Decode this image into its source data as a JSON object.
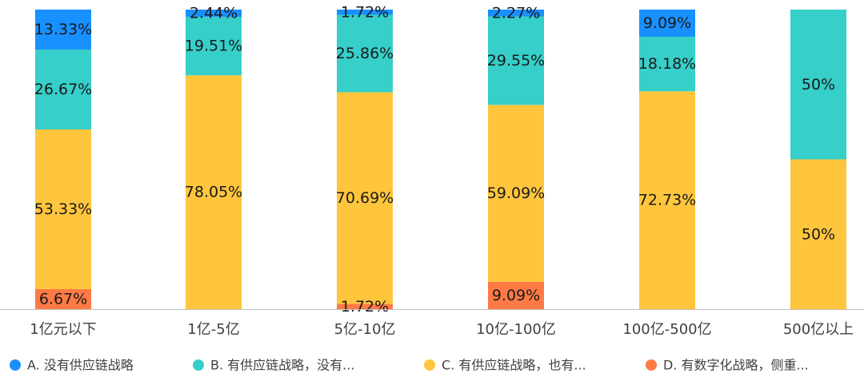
{
  "chart_data": {
    "type": "bar",
    "stacked": true,
    "percent": true,
    "categories": [
      "1亿元以下",
      "1亿-5亿",
      "5亿-10亿",
      "10亿-100亿",
      "100亿-500亿",
      "500亿以上"
    ],
    "series": [
      {
        "name": "A. 没有供应链战略",
        "color": "#1890ff",
        "values": [
          13.33,
          2.44,
          1.72,
          2.27,
          9.09,
          0
        ],
        "labels": [
          "13.33%",
          "2.44%",
          "1.72%",
          "2.27%",
          "9.09%",
          ""
        ]
      },
      {
        "name": "B. 有供应链战略，没有...",
        "color": "#36cfc9",
        "values": [
          26.67,
          19.51,
          25.86,
          29.55,
          18.18,
          50
        ],
        "labels": [
          "26.67%",
          "19.51%",
          "25.86%",
          "29.55%",
          "18.18%",
          "50%"
        ]
      },
      {
        "name": "C. 有供应链战略，也有...",
        "color": "#ffc53d",
        "values": [
          53.33,
          78.05,
          70.69,
          59.09,
          72.73,
          50
        ],
        "labels": [
          "53.33%",
          "78.05%",
          "70.69%",
          "59.09%",
          "72.73%",
          "50%"
        ]
      },
      {
        "name": "D. 有数字化战略，侧重...",
        "color": "#ff7a45",
        "values": [
          6.67,
          0,
          1.72,
          9.09,
          0,
          0
        ],
        "labels": [
          "6.67%",
          "",
          "1.72%",
          "9.09%",
          "",
          ""
        ]
      }
    ],
    "ylim": [
      0,
      100
    ],
    "grid": false,
    "legend": "bottom",
    "axis_color": "#bfbfbf"
  }
}
